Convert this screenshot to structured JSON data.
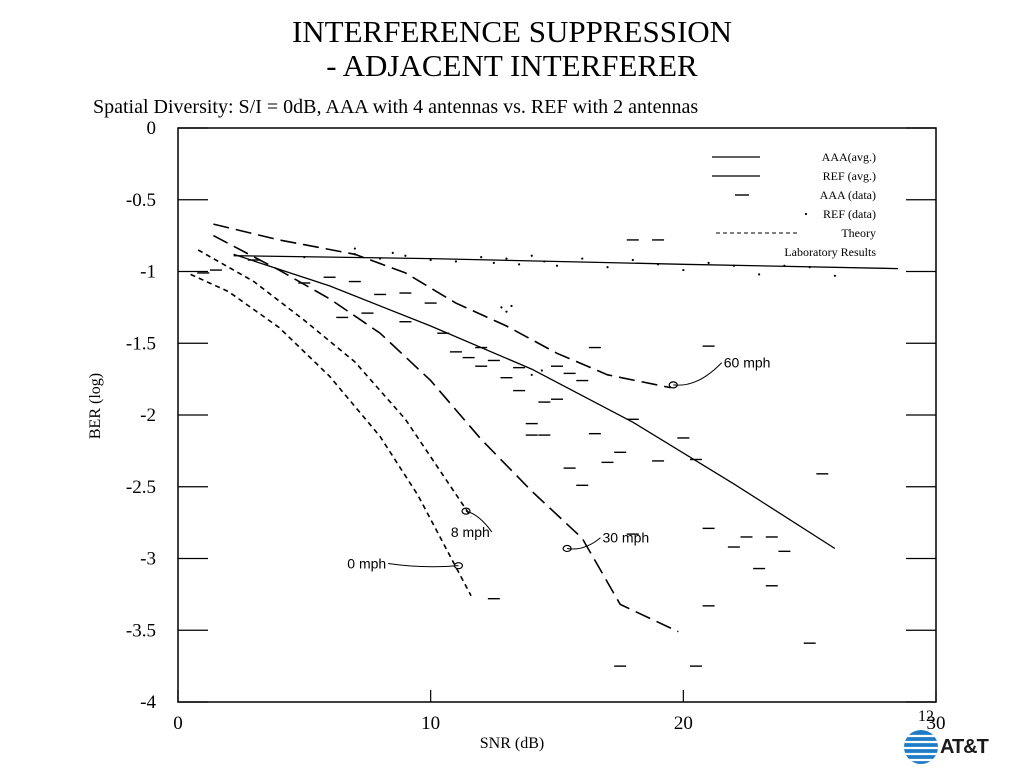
{
  "slide": {
    "title_line1": "INTERFERENCE SUPPRESSION",
    "title_line2": "- ADJACENT INTERFERER",
    "subtitle": "Spatial Diversity: S/I = 0dB, AAA with 4 antennas vs. REF with 2 antennas",
    "page_number": "12",
    "logo_text": "AT&T",
    "logo_icon": "globe-icon"
  },
  "chart_data": {
    "type": "line",
    "xlabel": "SNR (dB)",
    "ylabel": "BER (log)",
    "xlim": [
      0,
      30
    ],
    "ylim": [
      -4,
      0
    ],
    "xticks": [
      0,
      10,
      20,
      30
    ],
    "xtick_labels": [
      "0",
      "10",
      "20",
      "30"
    ],
    "yticks": [
      0,
      -0.5,
      -1,
      -1.5,
      -2,
      -2.5,
      -3,
      -3.5,
      -4
    ],
    "ytick_labels": [
      "0",
      "-0.5",
      "-1",
      "-1.5",
      "-2",
      "-2.5",
      "-3",
      "-3.5",
      "-4"
    ],
    "grid": false,
    "legend_position": "top-right",
    "legend": [
      {
        "label": "AAA(avg.)",
        "style": "solid"
      },
      {
        "label": "REF (avg.)",
        "style": "solid"
      },
      {
        "label": "AAA (data)",
        "style": "dash-marker"
      },
      {
        "label": "REF (data)",
        "style": "dot-marker"
      },
      {
        "label": "Theory",
        "style": "dashed"
      },
      {
        "label": "Laboratory Results",
        "style": "none"
      }
    ],
    "annotations": [
      {
        "text": "60 mph",
        "x": 21.6,
        "y": -1.67
      },
      {
        "text": "8 mph",
        "x": 10.8,
        "y": -2.85
      },
      {
        "text": "30 mph",
        "x": 16.8,
        "y": -2.89
      },
      {
        "text": "0 mph",
        "x": 6.7,
        "y": -3.07
      }
    ],
    "series": [
      {
        "style": "solid",
        "x": [
          2.2,
          6,
          10,
          14,
          18,
          22,
          26
        ],
        "y": [
          -0.88,
          -1.1,
          -1.38,
          -1.68,
          -2.05,
          -2.48,
          -2.93
        ]
      },
      {
        "style": "solid",
        "x": [
          2.2,
          10,
          20,
          28.5
        ],
        "y": [
          -0.89,
          -0.91,
          -0.95,
          -0.98
        ]
      },
      {
        "style": "dashed",
        "x": [
          1.4,
          4,
          7,
          9,
          11,
          13,
          15,
          17,
          19.5
        ],
        "y": [
          -0.67,
          -0.78,
          -0.88,
          -1.01,
          -1.22,
          -1.38,
          -1.57,
          -1.72,
          -1.81
        ]
      },
      {
        "style": "dashed",
        "x": [
          1.4,
          4,
          6,
          8,
          10,
          12,
          14,
          16,
          17.5,
          19.8
        ],
        "y": [
          -0.75,
          -0.99,
          -1.19,
          -1.43,
          -1.76,
          -2.17,
          -2.53,
          -2.86,
          -3.32,
          -3.51
        ]
      },
      {
        "style": "dashed",
        "x": [
          0.8,
          3,
          5,
          7,
          9,
          11.6
        ],
        "y": [
          -0.85,
          -1.07,
          -1.34,
          -1.63,
          -2.03,
          -2.71
        ]
      },
      {
        "style": "dashed",
        "x": [
          0.5,
          2,
          4,
          6,
          8,
          9.5,
          11.6
        ],
        "y": [
          -1.02,
          -1.14,
          -1.39,
          -1.73,
          -2.15,
          -2.56,
          -3.26
        ]
      }
    ],
    "aaa_data_points": [
      [
        1.0,
        -1.01
      ],
      [
        1.5,
        -0.99
      ],
      [
        3.0,
        -0.92
      ],
      [
        5.0,
        -1.08
      ],
      [
        6.0,
        -1.04
      ],
      [
        6.5,
        -1.32
      ],
      [
        7.0,
        -1.07
      ],
      [
        7.5,
        -1.29
      ],
      [
        8.0,
        -1.16
      ],
      [
        9.0,
        -1.15
      ],
      [
        9.0,
        -1.35
      ],
      [
        10.0,
        -1.22
      ],
      [
        10.5,
        -1.43
      ],
      [
        11.0,
        -1.56
      ],
      [
        11.5,
        -1.6
      ],
      [
        12.0,
        -1.53
      ],
      [
        12.0,
        -1.66
      ],
      [
        12.5,
        -1.62
      ],
      [
        13.0,
        -1.74
      ],
      [
        13.5,
        -1.67
      ],
      [
        13.5,
        -1.83
      ],
      [
        14.0,
        -2.06
      ],
      [
        14.0,
        -2.14
      ],
      [
        14.5,
        -1.91
      ],
      [
        14.5,
        -2.14
      ],
      [
        15.0,
        -1.89
      ],
      [
        15.0,
        -1.66
      ],
      [
        15.5,
        -1.71
      ],
      [
        15.5,
        -2.37
      ],
      [
        16.0,
        -2.49
      ],
      [
        16.0,
        -1.76
      ],
      [
        16.5,
        -1.53
      ],
      [
        16.5,
        -2.13
      ],
      [
        17.0,
        -2.33
      ],
      [
        17.5,
        -2.26
      ],
      [
        18.0,
        -2.03
      ],
      [
        18.0,
        -0.78
      ],
      [
        18.0,
        -2.83
      ],
      [
        19.0,
        -0.78
      ],
      [
        19.0,
        -2.32
      ],
      [
        20.0,
        -2.16
      ],
      [
        20.5,
        -2.31
      ],
      [
        21.0,
        -3.33
      ],
      [
        21.0,
        -2.79
      ],
      [
        22.0,
        -2.92
      ],
      [
        22.5,
        -2.85
      ],
      [
        23.0,
        -3.07
      ],
      [
        23.5,
        -2.85
      ],
      [
        23.5,
        -3.19
      ],
      [
        24.0,
        -2.95
      ],
      [
        25.0,
        -3.59
      ],
      [
        25.5,
        -2.41
      ],
      [
        21.0,
        -1.52
      ],
      [
        17.5,
        -3.75
      ],
      [
        20.5,
        -3.75
      ],
      [
        12.5,
        -3.28
      ]
    ],
    "ref_data_points": [
      [
        5.0,
        -0.9
      ],
      [
        7.0,
        -0.88
      ],
      [
        8.0,
        -0.91
      ],
      [
        9.0,
        -0.89
      ],
      [
        10.0,
        -0.92
      ],
      [
        11.0,
        -0.93
      ],
      [
        12.0,
        -0.9
      ],
      [
        12.5,
        -0.94
      ],
      [
        13.0,
        -0.91
      ],
      [
        13.5,
        -0.95
      ],
      [
        14.0,
        -0.89
      ],
      [
        14.5,
        -0.93
      ],
      [
        15.0,
        -0.96
      ],
      [
        16.0,
        -0.91
      ],
      [
        17.0,
        -0.97
      ],
      [
        18.0,
        -0.92
      ],
      [
        19.0,
        -0.95
      ],
      [
        20.0,
        -0.99
      ],
      [
        21.0,
        -0.94
      ],
      [
        22.0,
        -0.96
      ],
      [
        23.0,
        -1.02
      ],
      [
        24.0,
        -0.96
      ],
      [
        25.0,
        -0.97
      ],
      [
        26.0,
        -1.03
      ],
      [
        12.8,
        -1.25
      ],
      [
        13.0,
        -1.28
      ],
      [
        13.2,
        -1.24
      ],
      [
        14.0,
        -1.72
      ],
      [
        14.4,
        -1.69
      ],
      [
        7.0,
        -0.84
      ],
      [
        8.5,
        -0.87
      ]
    ]
  }
}
